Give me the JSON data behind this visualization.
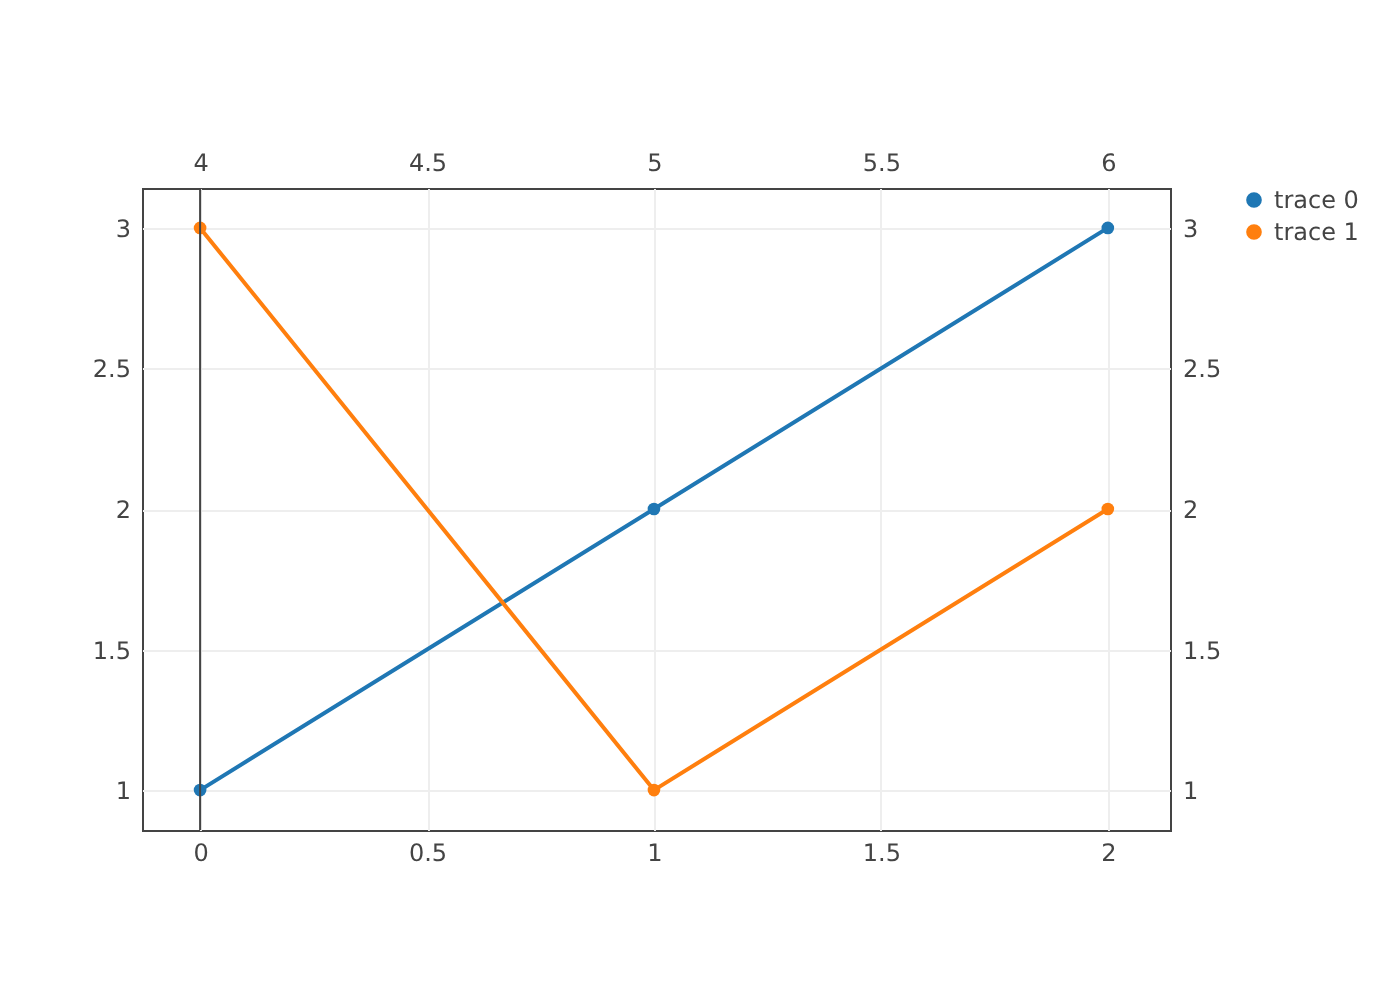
{
  "chart_data": {
    "type": "line",
    "x": [
      0,
      1,
      2
    ],
    "series": [
      {
        "name": "trace 0",
        "color": "#1f77b4",
        "values": [
          1,
          2,
          3
        ]
      },
      {
        "name": "trace 1",
        "color": "#ff7f0e",
        "x": [
          4,
          5,
          6
        ],
        "values": [
          3,
          1,
          2
        ],
        "axis": "x2"
      }
    ],
    "xlim": [
      -0.128,
      2.137
    ],
    "xticks": [
      0,
      0.5,
      1,
      1.5,
      2
    ],
    "x2lim": [
      3.872,
      6.137
    ],
    "x2ticks": [
      4,
      4.5,
      5,
      5.5,
      6
    ],
    "ylim": [
      0.858,
      3.142
    ],
    "yticks": [
      1,
      1.5,
      2,
      2.5,
      3
    ],
    "y2lim": [
      0.858,
      3.142
    ],
    "y2ticks": [
      1,
      1.5,
      2,
      2.5,
      3
    ],
    "ref_lines": [
      {
        "axis": "x",
        "value": 0,
        "color": "#444444"
      }
    ],
    "grid": true,
    "legend": "top right",
    "marker": "circle",
    "line_style": "solid"
  }
}
